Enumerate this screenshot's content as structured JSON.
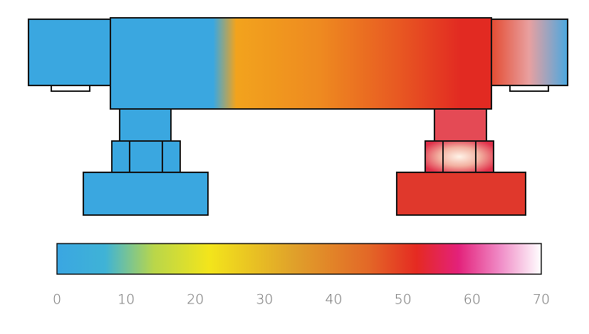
{
  "colorbar": {
    "range": [
      0,
      70
    ],
    "ticks": [
      0,
      10,
      20,
      30,
      40,
      50,
      60,
      70
    ],
    "stops": [
      {
        "value": 0,
        "color": "#3aa6e2"
      },
      {
        "value": 7,
        "color": "#3fb3d6"
      },
      {
        "value": 14,
        "color": "#b9d64a"
      },
      {
        "value": 22,
        "color": "#f3e51b"
      },
      {
        "value": 34,
        "color": "#e0a22a"
      },
      {
        "value": 45,
        "color": "#e36827"
      },
      {
        "value": 52,
        "color": "#e52a22"
      },
      {
        "value": 58,
        "color": "#e3217a"
      },
      {
        "value": 64,
        "color": "#f08ac6"
      },
      {
        "value": 70,
        "color": "#ffffff"
      }
    ]
  }
}
